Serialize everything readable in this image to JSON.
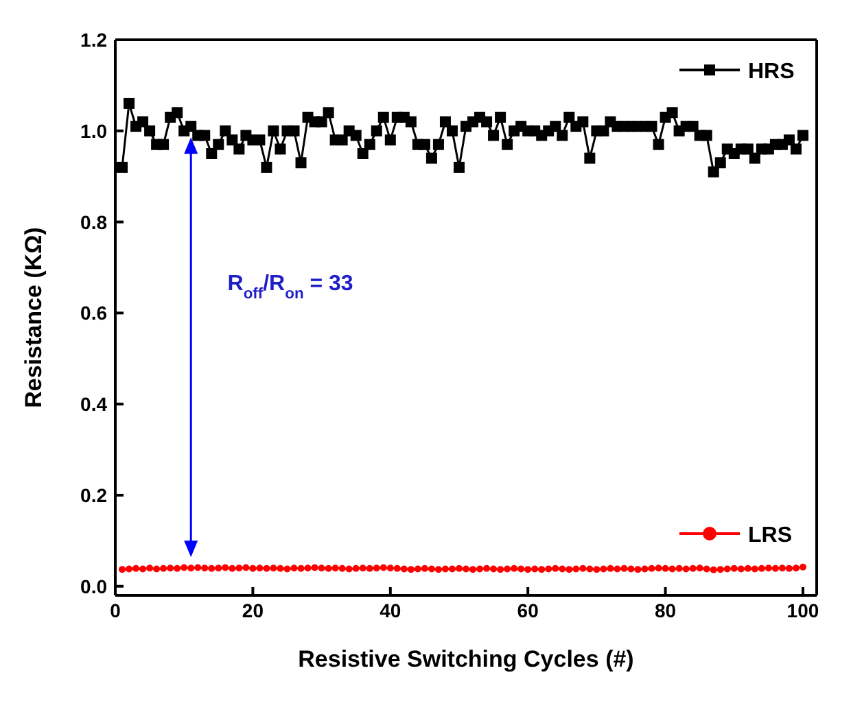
{
  "chart_data": {
    "type": "line",
    "xlabel": "Resistive Switching Cycles (#)",
    "ylabel": "Resistance (KΩ)",
    "x": [
      1,
      2,
      3,
      4,
      5,
      6,
      7,
      8,
      9,
      10,
      11,
      12,
      13,
      14,
      15,
      16,
      17,
      18,
      19,
      20,
      21,
      22,
      23,
      24,
      25,
      26,
      27,
      28,
      29,
      30,
      31,
      32,
      33,
      34,
      35,
      36,
      37,
      38,
      39,
      40,
      41,
      42,
      43,
      44,
      45,
      46,
      47,
      48,
      49,
      50,
      51,
      52,
      53,
      54,
      55,
      56,
      57,
      58,
      59,
      60,
      61,
      62,
      63,
      64,
      65,
      66,
      67,
      68,
      69,
      70,
      71,
      72,
      73,
      74,
      75,
      76,
      77,
      78,
      79,
      80,
      81,
      82,
      83,
      84,
      85,
      86,
      87,
      88,
      89,
      90,
      91,
      92,
      93,
      94,
      95,
      96,
      97,
      98,
      99,
      100
    ],
    "series": [
      {
        "name": "HRS",
        "color": "#000000",
        "marker": "square",
        "values": [
          0.92,
          1.06,
          1.01,
          1.02,
          1.0,
          0.97,
          0.97,
          1.03,
          1.04,
          1.0,
          1.01,
          0.99,
          0.99,
          0.95,
          0.97,
          1.0,
          0.98,
          0.96,
          0.99,
          0.98,
          0.98,
          0.92,
          1.0,
          0.96,
          1.0,
          1.0,
          0.93,
          1.03,
          1.02,
          1.02,
          1.04,
          0.98,
          0.98,
          1.0,
          0.99,
          0.95,
          0.97,
          1.0,
          1.03,
          0.98,
          1.03,
          1.03,
          1.02,
          0.97,
          0.97,
          0.94,
          0.97,
          1.02,
          1.0,
          0.92,
          1.01,
          1.02,
          1.03,
          1.02,
          0.99,
          1.03,
          0.97,
          1.0,
          1.01,
          1.0,
          1.0,
          0.99,
          1.0,
          1.01,
          0.99,
          1.03,
          1.01,
          1.02,
          0.94,
          1.0,
          1.0,
          1.02,
          1.01,
          1.01,
          1.01,
          1.01,
          1.01,
          1.01,
          0.97,
          1.03,
          1.04,
          1.0,
          1.01,
          1.01,
          0.99,
          0.99,
          0.91,
          0.93,
          0.96,
          0.95,
          0.96,
          0.96,
          0.94,
          0.96,
          0.96,
          0.97,
          0.97,
          0.98,
          0.96,
          0.99
        ]
      },
      {
        "name": "LRS",
        "color": "#ff0000",
        "marker": "circle",
        "values": [
          0.037,
          0.038,
          0.039,
          0.038,
          0.04,
          0.038,
          0.039,
          0.04,
          0.039,
          0.041,
          0.04,
          0.041,
          0.04,
          0.039,
          0.04,
          0.041,
          0.039,
          0.04,
          0.041,
          0.039,
          0.04,
          0.039,
          0.04,
          0.039,
          0.038,
          0.04,
          0.039,
          0.04,
          0.041,
          0.04,
          0.039,
          0.04,
          0.039,
          0.038,
          0.039,
          0.04,
          0.039,
          0.04,
          0.041,
          0.04,
          0.039,
          0.038,
          0.037,
          0.038,
          0.039,
          0.038,
          0.037,
          0.038,
          0.038,
          0.039,
          0.038,
          0.037,
          0.038,
          0.039,
          0.038,
          0.037,
          0.038,
          0.039,
          0.038,
          0.037,
          0.038,
          0.037,
          0.038,
          0.039,
          0.038,
          0.037,
          0.038,
          0.039,
          0.038,
          0.037,
          0.038,
          0.039,
          0.038,
          0.039,
          0.038,
          0.037,
          0.038,
          0.039,
          0.04,
          0.039,
          0.038,
          0.039,
          0.038,
          0.039,
          0.04,
          0.038,
          0.036,
          0.037,
          0.038,
          0.039,
          0.038,
          0.039,
          0.038,
          0.039,
          0.04,
          0.039,
          0.04,
          0.039,
          0.04,
          0.042
        ]
      }
    ],
    "xlim": [
      0,
      102
    ],
    "xticks": [
      0,
      20,
      40,
      60,
      80,
      100
    ],
    "ylim": [
      -0.02,
      1.2
    ],
    "yticks": [
      {
        "value": 0,
        "label": "0.0"
      },
      {
        "value": 0.2,
        "label": "0.2"
      },
      {
        "value": 0.4,
        "label": "0.4"
      },
      {
        "value": 0.6,
        "label": "0.6"
      },
      {
        "value": 0.8,
        "label": "0.8"
      },
      {
        "value": 1,
        "label": "1.0"
      },
      {
        "value": 1.2,
        "label": "1.2"
      }
    ],
    "annotations": [
      "R$_{off}$/R$_{on}$ = 33"
    ],
    "legend": "right",
    "grid": false,
    "line_style": "solid"
  }
}
